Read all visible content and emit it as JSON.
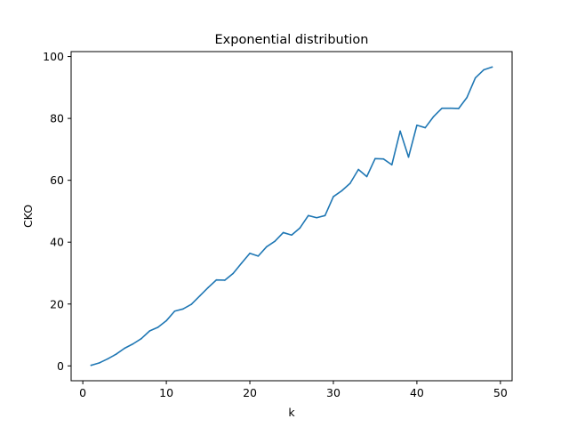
{
  "chart_data": {
    "type": "line",
    "title": "Exponential distribution",
    "xlabel": "k",
    "ylabel": "CKO",
    "xlim": [
      -1.4,
      51.4
    ],
    "ylim": [
      -4.8,
      101.6
    ],
    "xticks": [
      0,
      10,
      20,
      30,
      40,
      50
    ],
    "yticks": [
      0,
      20,
      40,
      60,
      80,
      100
    ],
    "xtick_labels": [
      "0",
      "10",
      "20",
      "30",
      "40",
      "50"
    ],
    "ytick_labels": [
      "0",
      "20",
      "40",
      "60",
      "80",
      "100"
    ],
    "grid": false,
    "line_color": "#1f77b4",
    "series": [
      {
        "x": [
          1,
          2,
          3,
          4,
          5,
          6,
          7,
          8,
          9,
          10,
          11,
          12,
          13,
          14,
          15,
          16,
          17,
          18,
          19,
          20,
          21,
          22,
          23,
          24,
          25,
          26,
          27,
          28,
          29,
          30,
          31,
          32,
          33,
          34,
          35,
          36,
          37,
          38,
          39,
          40,
          41,
          42,
          43,
          44,
          45,
          46,
          47,
          48,
          49
        ],
        "values": [
          0.2,
          1.0,
          2.3,
          3.8,
          5.7,
          7.1,
          8.8,
          11.3,
          12.5,
          14.6,
          17.7,
          18.4,
          19.9,
          22.6,
          25.3,
          27.8,
          27.7,
          29.9,
          33.2,
          36.4,
          35.5,
          38.5,
          40.3,
          43.1,
          42.3,
          44.6,
          48.6,
          47.9,
          48.6,
          54.7,
          56.6,
          59.0,
          63.5,
          61.2,
          67.0,
          66.9,
          65.0,
          75.9,
          67.5,
          77.8,
          77.0,
          80.6,
          83.3,
          83.3,
          83.2,
          86.8,
          93.1,
          95.7,
          96.6
        ]
      }
    ]
  }
}
